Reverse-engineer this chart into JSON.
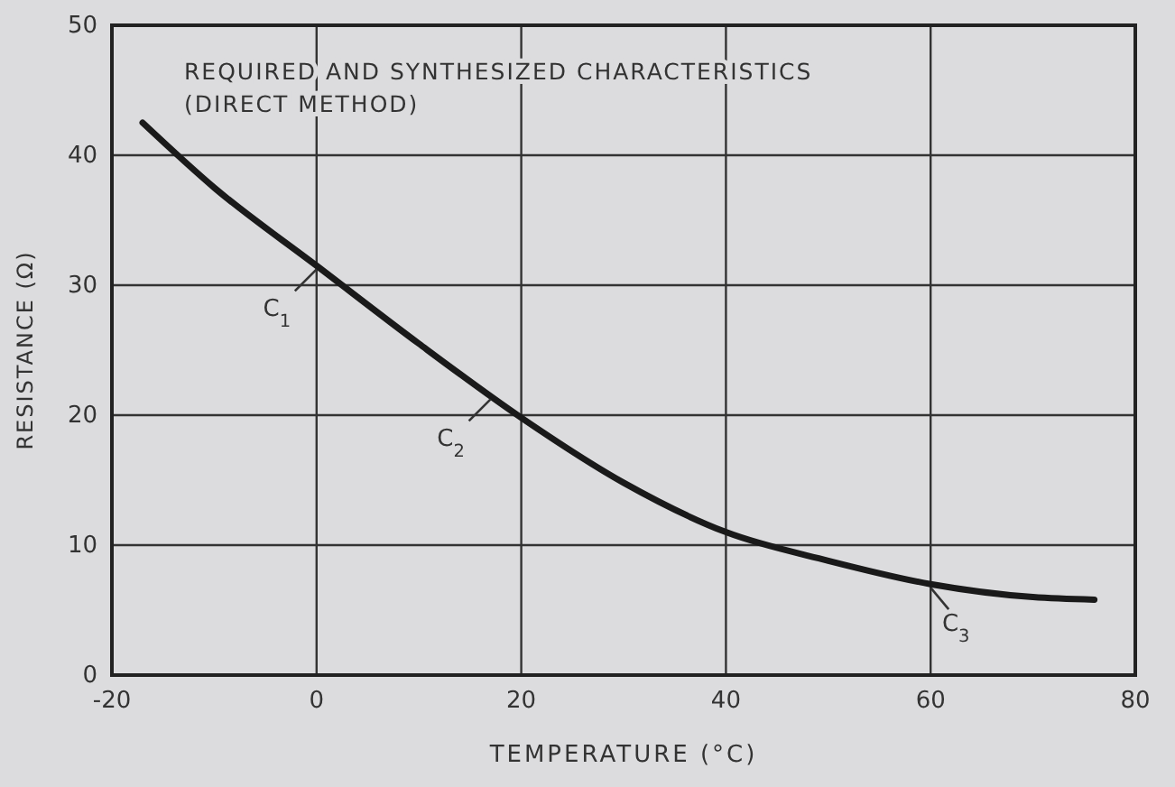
{
  "chart_data": {
    "type": "line",
    "title": "REQUIRED AND SYNTHESIZED CHARACTERISTICS",
    "subtitle": "(DIRECT METHOD)",
    "xlabel": "TEMPERATURE (°C)",
    "ylabel": "RESISTANCE (Ω)",
    "x": [
      -17,
      -10,
      0,
      10,
      20,
      30,
      40,
      50,
      60,
      70,
      76
    ],
    "series": [
      {
        "color": "#1a1a1a",
        "values": [
          42.5,
          37.5,
          31.5,
          25.5,
          19.8,
          14.8,
          11,
          8.8,
          7,
          6,
          5.8
        ]
      }
    ],
    "xlim": [
      -20,
      80
    ],
    "xticks": [
      -20,
      0,
      20,
      40,
      60,
      80
    ],
    "ylim": [
      0,
      50
    ],
    "yticks": [
      0,
      10,
      20,
      30,
      40,
      50
    ],
    "grid": true,
    "marker": "none",
    "line_style": "solid",
    "annotations": [
      {
        "text": "C$_{1}$",
        "x": 0,
        "y": 31.5
      },
      {
        "text": "C$_{2}$",
        "x": 17,
        "y": 21.5
      },
      {
        "text": "C$_{3}$",
        "x": 60,
        "y": 7
      }
    ]
  }
}
